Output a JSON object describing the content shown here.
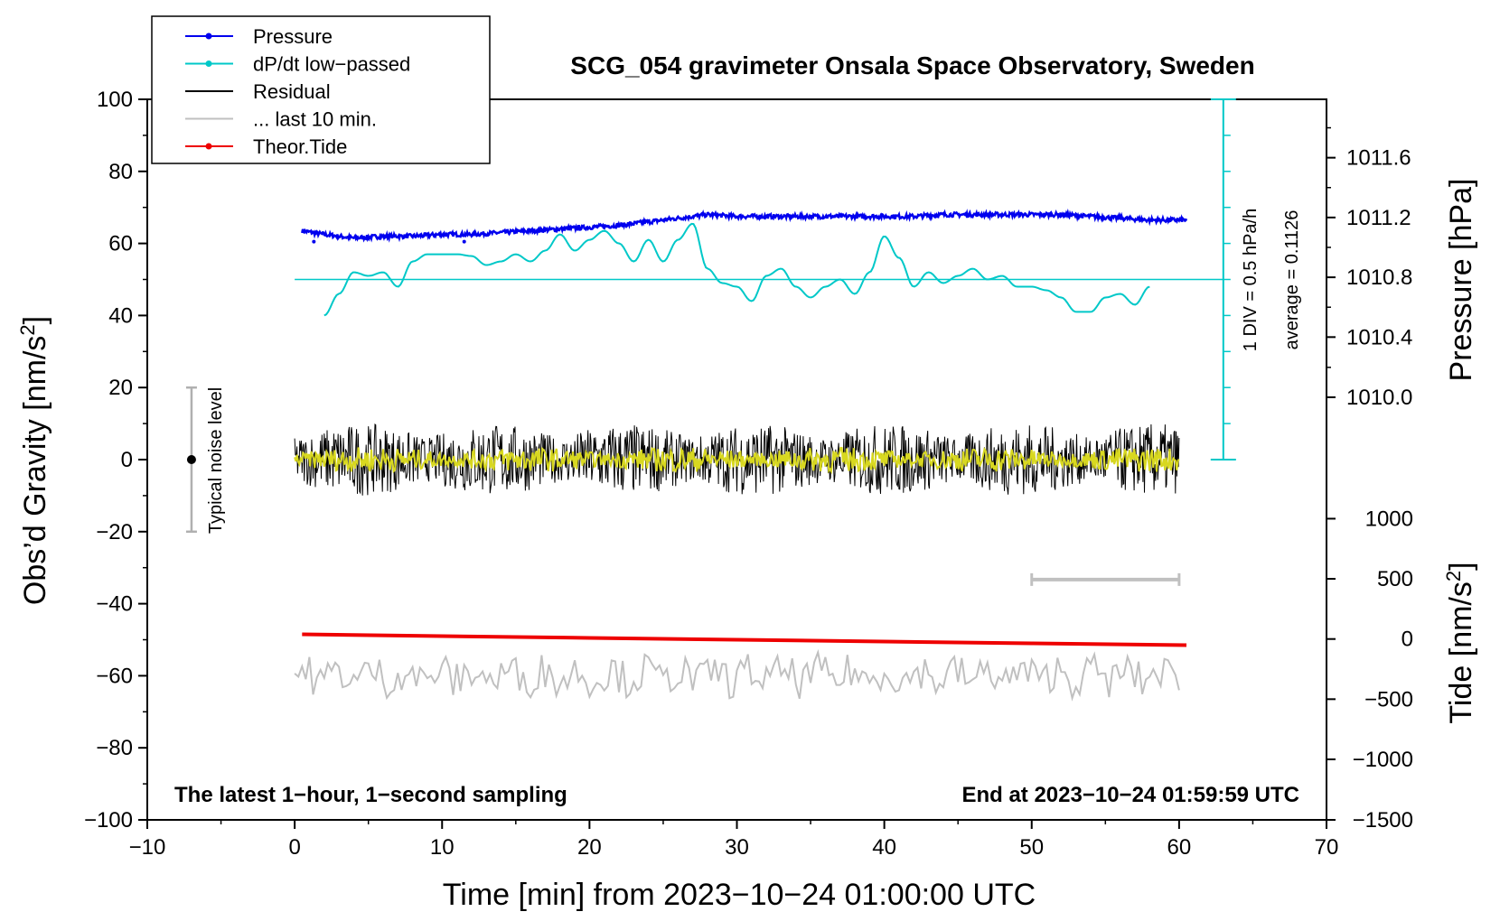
{
  "chart_data": {
    "type": "line",
    "title": "SCG_054 gravimeter Onsala Space Observatory, Sweden",
    "xlabel": "Time [min] from 2023−10−24 01:00:00 UTC",
    "ylabel_left": "Obs’d Gravity [nm/s²]",
    "ylabel_left_main": "Obs’d Gravity [nm/s",
    "ylabel_left_sup": "2",
    "ylabel_left_end": "]",
    "ylabel_right_top": "Pressure [hPa]",
    "ylabel_right_bottom_main": "Tide [nm/s",
    "ylabel_right_bottom_sup": "2",
    "ylabel_right_bottom_end": "]",
    "xlim": [
      -10,
      70
    ],
    "ylim": [
      -100,
      100
    ],
    "x_ticks": [
      -10,
      0,
      10,
      20,
      30,
      40,
      50,
      60,
      70
    ],
    "x_tick_labels": [
      "−10",
      "0",
      "10",
      "20",
      "30",
      "40",
      "50",
      "60",
      "70"
    ],
    "y_ticks": [
      -100,
      -80,
      -60,
      -40,
      -20,
      0,
      20,
      40,
      60,
      80,
      100
    ],
    "y_tick_labels": [
      "−100",
      "−80",
      "−60",
      "−40",
      "−20",
      "0",
      "20",
      "40",
      "60",
      "80",
      "100"
    ],
    "pressure_axis": {
      "ticks": [
        1010.0,
        1010.4,
        1010.8,
        1011.2,
        1011.6
      ],
      "tick_labels": [
        "1010.0",
        "1010.4",
        "1010.8",
        "1011.2",
        "1011.6"
      ],
      "gravity_equiv": [
        17.3,
        34.0,
        50.6,
        67.2,
        83.8
      ]
    },
    "tide_axis": {
      "ticks": [
        -1500,
        -1000,
        -500,
        0,
        500,
        1000
      ],
      "tick_labels": [
        "−1500",
        "−1000",
        "−500",
        "0",
        "500",
        "1000"
      ],
      "gravity_equiv": [
        -100,
        -83.2,
        -66.5,
        -49.8,
        -33.1,
        -16.4
      ]
    },
    "legend": [
      {
        "label": "Pressure",
        "color": "#0000ee",
        "marker": true
      },
      {
        "label": "dP/dt low−passed",
        "color": "#00c8c8",
        "marker": true
      },
      {
        "label": "Residual",
        "color": "#000000",
        "marker": false
      },
      {
        "label": "... last 10 min.",
        "color": "#c0c0c0",
        "marker": false
      },
      {
        "label": "Theor.Tide",
        "color": "#ee0000",
        "marker": true
      }
    ],
    "series": [
      {
        "name": "Pressure",
        "color": "#0000ee",
        "x": [
          0.5,
          2,
          4,
          6,
          8,
          10,
          12,
          14,
          16,
          18,
          20,
          22,
          24,
          26,
          28,
          30,
          32,
          34,
          36,
          38,
          40,
          42,
          44,
          46,
          48,
          50,
          52,
          54,
          56,
          58,
          60.5
        ],
        "y": [
          63.5,
          62.5,
          61.5,
          62,
          62,
          62.5,
          62.5,
          63,
          63.5,
          64,
          64.5,
          65,
          66,
          67,
          68,
          67.5,
          67.5,
          67.5,
          67.5,
          67.5,
          67.5,
          67.5,
          68,
          68,
          68,
          68,
          68,
          67.5,
          67,
          66.5,
          66.5
        ]
      },
      {
        "name": "dP/dt low−passed",
        "color": "#00c8c8",
        "x": [
          2,
          3,
          4,
          5,
          6,
          7,
          8,
          9,
          10,
          11,
          12,
          13,
          14,
          15,
          16,
          17,
          18,
          19,
          20,
          21,
          22,
          23,
          24,
          25,
          26,
          27,
          28,
          29,
          30,
          31,
          32,
          33,
          34,
          35,
          36,
          37,
          38,
          39,
          40,
          41,
          42,
          43,
          44,
          45,
          46,
          47,
          48,
          49,
          50,
          51,
          52,
          53,
          54,
          55,
          56,
          57,
          58
        ],
        "y": [
          40,
          46,
          52,
          51,
          52,
          48,
          55,
          57,
          57,
          57,
          56.5,
          54,
          55,
          57,
          55,
          58,
          62.5,
          58,
          61,
          63.5,
          60,
          55,
          61,
          55,
          61,
          65.5,
          53,
          49,
          48,
          44,
          51,
          53,
          48,
          45,
          48,
          50,
          46,
          52,
          62,
          56,
          48,
          52,
          49,
          51,
          53,
          50,
          51,
          48,
          48,
          47,
          45,
          41,
          41,
          45,
          46,
          43,
          48
        ]
      },
      {
        "name": "Theor.Tide",
        "color": "#ee0000",
        "x": [
          0.5,
          10,
          20,
          30,
          40,
          50,
          60.5
        ],
        "y": [
          -48.5,
          -49,
          -49.5,
          -50,
          -50.5,
          -51,
          -51.5
        ]
      }
    ],
    "pressure_average_line": {
      "y": 50,
      "label": "average = 0.1126"
    },
    "scale_bar_label": "1 DIV = 0.5 hPa/h",
    "noise_level": {
      "label": "Typical noise level",
      "x": -7,
      "y_min": -20,
      "y_max": 20,
      "y_center": 0
    },
    "residual": {
      "x_start": 0,
      "x_end": 60,
      "y_center": 0,
      "amplitude": 10,
      "y_min": -17,
      "y_max": 16
    },
    "last_10_min": {
      "x_start": 0,
      "x_end": 60,
      "y_center": -60,
      "amplitude": 5,
      "y_min": -72,
      "y_max": -51
    },
    "period_bar": {
      "x_start": 50,
      "x_end": 60,
      "y": -33.3
    },
    "annotations": {
      "bottom_left": "The latest 1−hour, 1−second sampling",
      "bottom_right": "End at 2023−10−24 01:59:59 UTC"
    }
  }
}
